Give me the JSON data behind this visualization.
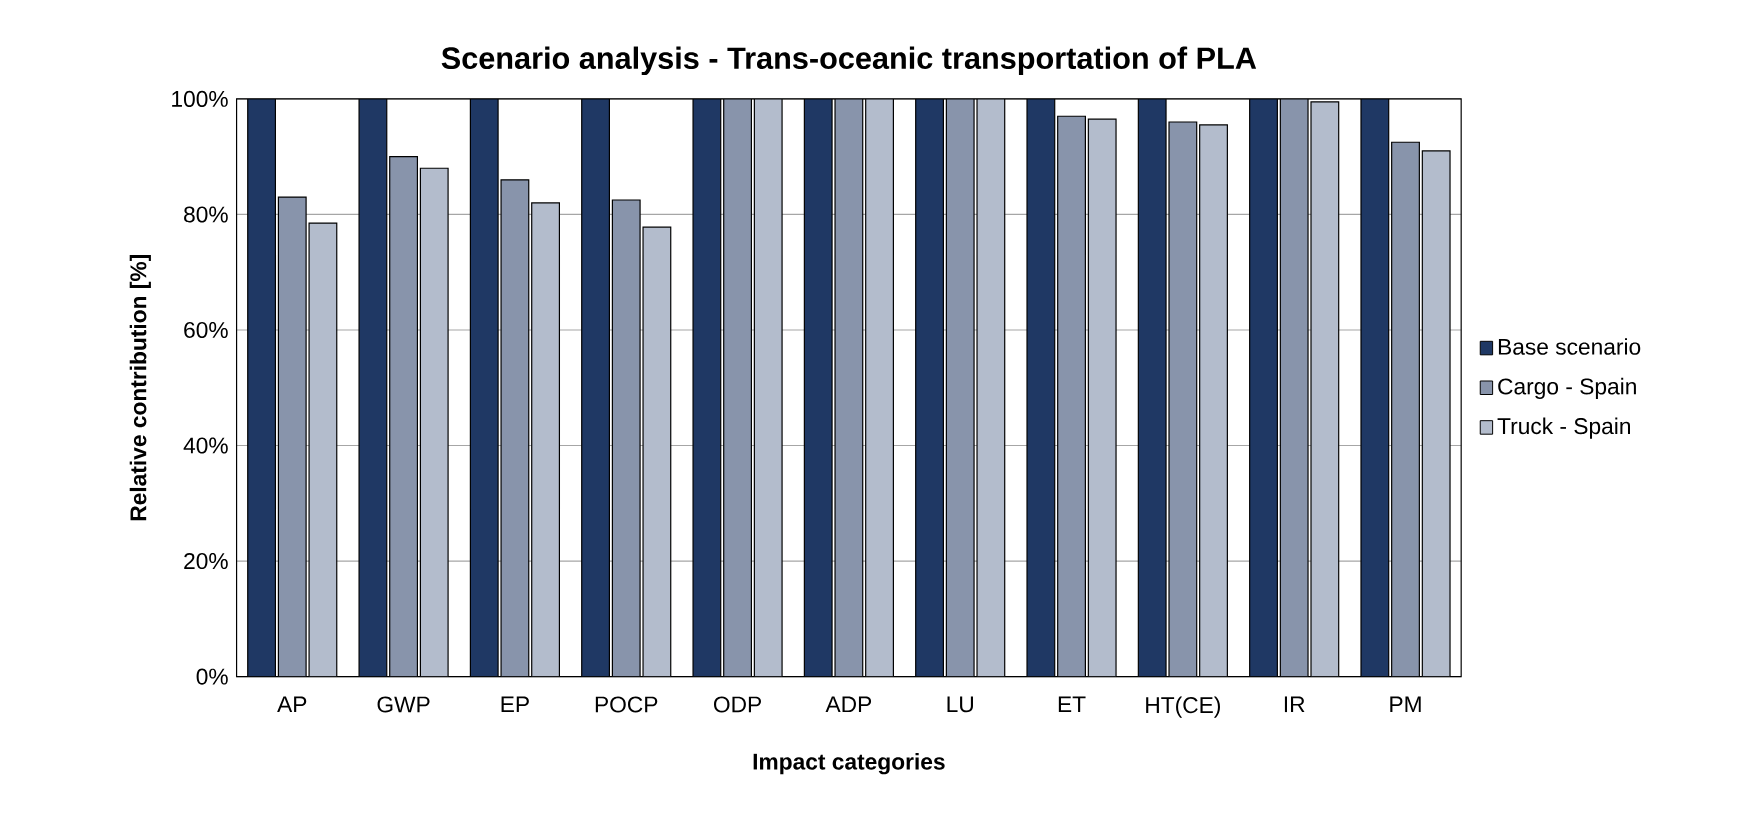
{
  "chart_data": {
    "type": "bar",
    "title": "Scenario analysis - Trans-oceanic transportation of PLA",
    "xlabel": "Impact categories",
    "ylabel": "Relative contribution [%]",
    "categories": [
      "AP",
      "GWP",
      "EP",
      "POCP",
      "ODP",
      "ADP",
      "LU",
      "ET",
      "HT(CE)",
      "IR",
      "PM"
    ],
    "series": [
      {
        "name": "Base scenario",
        "color": "#1f3864",
        "values": [
          100,
          100,
          100,
          100,
          100,
          100,
          100,
          100,
          100,
          100,
          100
        ]
      },
      {
        "name": "Cargo - Spain",
        "color": "#8894ab",
        "values": [
          83,
          90,
          86,
          82.5,
          100,
          100,
          100,
          97,
          96,
          100,
          92.5
        ]
      },
      {
        "name": "Truck - Spain",
        "color": "#b3bccc",
        "values": [
          78.5,
          88,
          82,
          77.8,
          100,
          100,
          100,
          96.5,
          95.5,
          99.5,
          91
        ]
      }
    ],
    "ylim": [
      0,
      100
    ],
    "yticks": [
      {
        "value": 0,
        "label": "0%"
      },
      {
        "value": 20,
        "label": "20%"
      },
      {
        "value": 40,
        "label": "40%"
      },
      {
        "value": 60,
        "label": "60%"
      },
      {
        "value": 80,
        "label": "80%"
      },
      {
        "value": 100,
        "label": "100%"
      }
    ],
    "grid": "y",
    "legend": "right"
  }
}
